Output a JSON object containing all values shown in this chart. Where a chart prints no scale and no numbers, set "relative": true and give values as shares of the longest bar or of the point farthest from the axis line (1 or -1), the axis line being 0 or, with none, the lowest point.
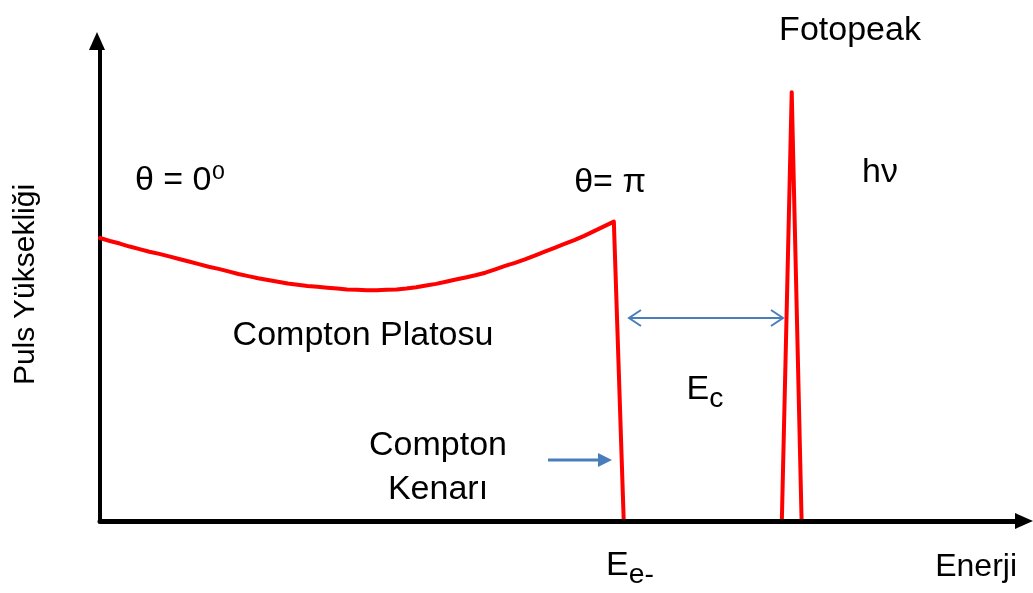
{
  "chart_data": {
    "type": "line",
    "relative": true,
    "xlabel": "Enerji",
    "ylabel": "Puls Yüksekliği",
    "categories": [
      null,
      null,
      null,
      null,
      null,
      null,
      null,
      null,
      null,
      null,
      null,
      null,
      null,
      null,
      null,
      null,
      null,
      null,
      null,
      null,
      null,
      null,
      null,
      null,
      null,
      null,
      null,
      null,
      null,
      null,
      null,
      null,
      null,
      null,
      null,
      null,
      null,
      null,
      null,
      null,
      null,
      null,
      null,
      null,
      null,
      null,
      null,
      null,
      null,
      null,
      null,
      null,
      null,
      null,
      null,
      null,
      null,
      null,
      null,
      null,
      null,
      null,
      null,
      null,
      null,
      null,
      null,
      null,
      null,
      null,
      null,
      null,
      null,
      null,
      null,
      null,
      null,
      null,
      null,
      null,
      null,
      null,
      null,
      null,
      null,
      null,
      null,
      null,
      null,
      null,
      null,
      null,
      null,
      null
    ],
    "series": [
      {
        "color": "#ff0000",
        "values": [
          0.66,
          0.653,
          0.647,
          0.64,
          0.634,
          0.628,
          0.623,
          0.617,
          0.611,
          0.605,
          0.599,
          0.593,
          0.588,
          0.582,
          0.576,
          0.571,
          0.566,
          0.562,
          0.558,
          0.554,
          0.551,
          0.548,
          0.546,
          0.544,
          0.542,
          0.54,
          0.539,
          0.538,
          0.538,
          0.539,
          0.54,
          0.542,
          0.545,
          0.549,
          0.553,
          0.558,
          0.563,
          0.568,
          0.573,
          0.579,
          0.587,
          0.595,
          0.602,
          0.61,
          0.619,
          0.628,
          0.637,
          0.646,
          0.655,
          0.665,
          0.676,
          0.687,
          0.698,
          0,
          0,
          0,
          0,
          0,
          0,
          0,
          0,
          0,
          0,
          0,
          0,
          0,
          0,
          0,
          0,
          0,
          1,
          0,
          null,
          null,
          null,
          null,
          null,
          null,
          null,
          null,
          null,
          null,
          null,
          null,
          null,
          null,
          null,
          null,
          null,
          null,
          null,
          null,
          null,
          null
        ]
      }
    ],
    "annotations": [
      "θ = 0⁰",
      "θ= π",
      "Fotopeak",
      "hν",
      "Compton Platosu",
      "E$_{c}$",
      "Compton Kenarı",
      "E$_{e-}$"
    ],
    "grid": false,
    "marker": "none",
    "line_style": "solid"
  }
}
